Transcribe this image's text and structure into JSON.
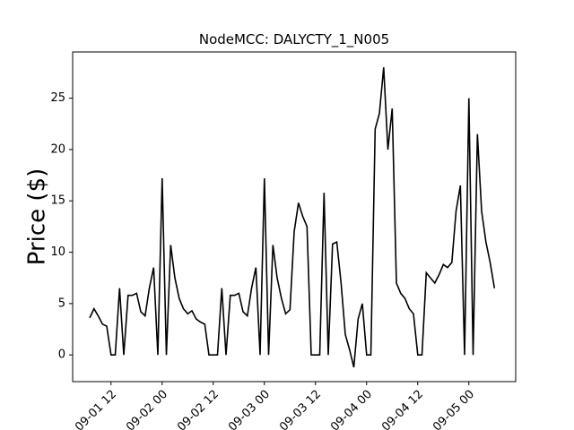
{
  "chart_data": {
    "type": "line",
    "title": "NodeMCC: DALYCTY_1_N005",
    "y_label": "Price ($)",
    "x": [
      "09-01 07",
      "09-01 08",
      "09-01 09",
      "09-01 10",
      "09-01 11",
      "09-01 12",
      "09-01 13",
      "09-01 14",
      "09-01 15",
      "09-01 16",
      "09-01 17",
      "09-01 18",
      "09-01 19",
      "09-01 20",
      "09-01 21",
      "09-01 22",
      "09-01 23",
      "09-02 00",
      "09-02 01",
      "09-02 02",
      "09-02 03",
      "09-02 04",
      "09-02 05",
      "09-02 06",
      "09-02 07",
      "09-02 08",
      "09-02 09",
      "09-02 10",
      "09-02 11",
      "09-02 12",
      "09-02 13",
      "09-02 14",
      "09-02 15",
      "09-02 16",
      "09-02 17",
      "09-02 18",
      "09-02 19",
      "09-02 20",
      "09-02 21",
      "09-02 22",
      "09-02 23",
      "09-03 00",
      "09-03 01",
      "09-03 02",
      "09-03 03",
      "09-03 04",
      "09-03 05",
      "09-03 06",
      "09-03 07",
      "09-03 08",
      "09-03 09",
      "09-03 10",
      "09-03 11",
      "09-03 12",
      "09-03 13",
      "09-03 14",
      "09-03 15",
      "09-03 16",
      "09-03 17",
      "09-03 18",
      "09-03 19",
      "09-03 20",
      "09-03 21",
      "09-03 22",
      "09-03 23",
      "09-04 00",
      "09-04 01",
      "09-04 02",
      "09-04 03",
      "09-04 04",
      "09-04 05",
      "09-04 06",
      "09-04 07",
      "09-04 08",
      "09-04 09",
      "09-04 10",
      "09-04 11",
      "09-04 12",
      "09-04 13",
      "09-04 14",
      "09-04 15",
      "09-04 16",
      "09-04 17",
      "09-04 18",
      "09-04 19",
      "09-04 20",
      "09-04 21",
      "09-04 22",
      "09-04 23",
      "09-05 00",
      "09-05 01",
      "09-05 02",
      "09-05 03",
      "09-05 04",
      "09-05 05",
      "09-05 06"
    ],
    "series": [
      {
        "color": "#000000",
        "values": [
          3.6,
          4.5,
          3.8,
          3.0,
          2.8,
          0,
          0,
          6.5,
          0,
          5.8,
          5.8,
          6.0,
          4.2,
          3.8,
          6.5,
          8.5,
          0,
          17.2,
          0,
          10.7,
          7.5,
          5.5,
          4.5,
          4.0,
          4.3,
          3.5,
          3.2,
          3.0,
          0,
          0,
          0,
          6.5,
          0,
          5.8,
          5.8,
          6.0,
          4.2,
          3.8,
          6.5,
          8.5,
          0,
          17.2,
          0,
          10.7,
          7.5,
          5.5,
          4.0,
          4.4,
          12.0,
          14.8,
          13.5,
          12.5,
          0,
          0,
          0,
          15.8,
          0,
          10.8,
          11.0,
          7.0,
          2.0,
          0.5,
          -1.2,
          3.5,
          5.0,
          0,
          0,
          22.0,
          23.5,
          28.0,
          20.0,
          24.0,
          7.0,
          6.0,
          5.5,
          4.5,
          4.0,
          0,
          0,
          8.0,
          7.5,
          7.0,
          7.8,
          8.8,
          8.5,
          9.0,
          14.0,
          16.5,
          0,
          25.0,
          0,
          21.5,
          14.0,
          11.0,
          9.0,
          6.5
        ]
      }
    ],
    "xlim": [
      "09-01 03",
      "09-05 11"
    ],
    "xticks": [
      "09-01 12",
      "09-02 00",
      "09-02 12",
      "09-03 00",
      "09-03 12",
      "09-04 00",
      "09-04 12",
      "09-05 00"
    ],
    "ylim": [
      -2.6,
      29.5
    ],
    "yticks": [
      0,
      5,
      10,
      15,
      20,
      25
    ]
  }
}
